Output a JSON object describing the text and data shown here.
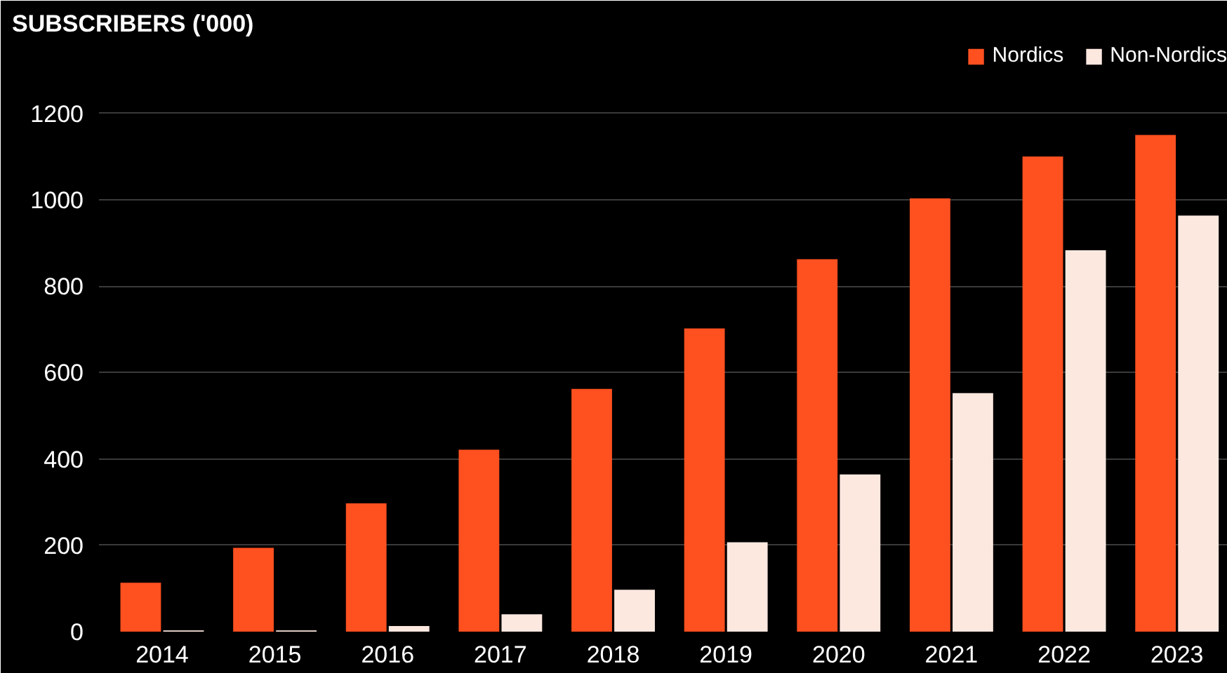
{
  "chart_data": {
    "type": "bar",
    "title": "SUBSCRIBERS ('000)",
    "categories": [
      "2014",
      "2015",
      "2016",
      "2017",
      "2018",
      "2019",
      "2020",
      "2021",
      "2022",
      "2023"
    ],
    "series": [
      {
        "name": "Nordics",
        "color": "#ff5020",
        "values": [
          113,
          194,
          297,
          421,
          562,
          702,
          862,
          1003,
          1100,
          1150
        ]
      },
      {
        "name": "Non-Nordics",
        "color": "#fde8e0",
        "values": [
          3,
          3,
          13,
          40,
          97,
          207,
          364,
          552,
          883,
          963
        ]
      }
    ],
    "ylim": [
      0,
      1360
    ],
    "yticks": [
      0,
      200,
      400,
      600,
      800,
      1000,
      1200
    ],
    "grid": "y",
    "legend": "top right"
  }
}
